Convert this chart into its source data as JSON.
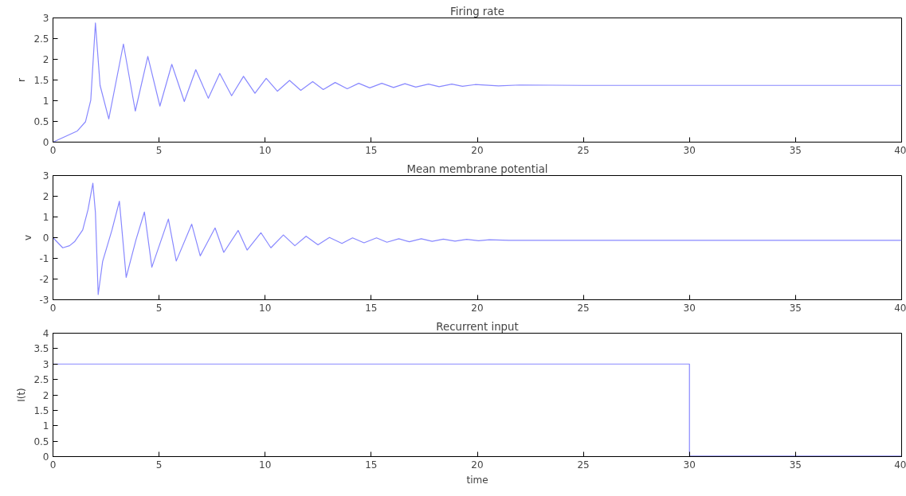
{
  "chart_data": [
    {
      "type": "line",
      "title": "Firing rate",
      "ylabel": "r",
      "xlim": [
        0,
        40
      ],
      "ylim": [
        0,
        3
      ],
      "xticks": [
        0,
        5,
        10,
        15,
        20,
        25,
        30,
        35,
        40
      ],
      "yticks": [
        0,
        0.5,
        1,
        1.5,
        2,
        2.5,
        3
      ],
      "series": [
        {
          "color": "#8888ff",
          "x": [
            0,
            1.15,
            1.53,
            1.78,
            2.0,
            2.22,
            2.63,
            3.32,
            3.88,
            4.47,
            5.04,
            5.6,
            6.19,
            6.73,
            7.32,
            7.86,
            8.42,
            8.98,
            9.52,
            10.05,
            10.58,
            11.15,
            11.68,
            12.24,
            12.74,
            13.3,
            13.87,
            14.41,
            14.93,
            15.5,
            16.05,
            16.59,
            17.1,
            17.7,
            18.2,
            18.8,
            19.3,
            19.9,
            21,
            22,
            25,
            30,
            40
          ],
          "values": [
            0,
            0.27,
            0.49,
            1.01,
            2.88,
            1.37,
            0.56,
            2.37,
            0.75,
            2.07,
            0.87,
            1.88,
            0.98,
            1.75,
            1.06,
            1.66,
            1.12,
            1.59,
            1.18,
            1.54,
            1.23,
            1.49,
            1.25,
            1.46,
            1.27,
            1.44,
            1.29,
            1.42,
            1.31,
            1.42,
            1.32,
            1.41,
            1.33,
            1.4,
            1.34,
            1.4,
            1.35,
            1.39,
            1.36,
            1.38,
            1.37,
            1.37,
            1.37
          ]
        }
      ]
    },
    {
      "type": "line",
      "title": "Mean membrane potential",
      "ylabel": "v",
      "xlim": [
        0,
        40
      ],
      "ylim": [
        -3,
        3
      ],
      "xticks": [
        0,
        5,
        10,
        15,
        20,
        25,
        30,
        35,
        40
      ],
      "yticks": [
        -3,
        -2,
        -1,
        0,
        1,
        2,
        3
      ],
      "series": [
        {
          "color": "#8888ff",
          "x": [
            0,
            0.46,
            0.78,
            1.03,
            1.4,
            1.65,
            1.88,
            2.0,
            2.13,
            2.34,
            2.78,
            3.13,
            3.45,
            3.91,
            4.31,
            4.66,
            5.44,
            5.81,
            6.54,
            6.94,
            7.64,
            8.05,
            8.73,
            9.15,
            9.8,
            10.27,
            10.86,
            11.4,
            11.93,
            12.49,
            13.03,
            13.62,
            14.12,
            14.66,
            15.25,
            15.74,
            16.3,
            16.8,
            17.36,
            17.87,
            18.4,
            18.95,
            19.5,
            20.06,
            20.57,
            21.5,
            25,
            30,
            40
          ],
          "values": [
            0,
            -0.49,
            -0.39,
            -0.18,
            0.37,
            1.35,
            2.63,
            1.21,
            -2.75,
            -1.15,
            0.37,
            1.76,
            -1.92,
            -0.11,
            1.24,
            -1.43,
            0.9,
            -1.13,
            0.65,
            -0.88,
            0.47,
            -0.71,
            0.35,
            -0.6,
            0.24,
            -0.49,
            0.13,
            -0.39,
            0.07,
            -0.35,
            0.01,
            -0.28,
            -0.01,
            -0.25,
            -0.01,
            -0.22,
            -0.05,
            -0.2,
            -0.05,
            -0.18,
            -0.07,
            -0.17,
            -0.08,
            -0.15,
            -0.1,
            -0.13,
            -0.13,
            -0.13,
            -0.13
          ]
        }
      ]
    },
    {
      "type": "line",
      "title": "Recurrent input",
      "ylabel": "I(t)",
      "xlabel": "time",
      "xlim": [
        0,
        40
      ],
      "ylim": [
        0,
        4
      ],
      "xticks": [
        0,
        5,
        10,
        15,
        20,
        25,
        30,
        35,
        40
      ],
      "yticks": [
        0,
        0.5,
        1,
        1.5,
        2,
        2.5,
        3,
        3.5,
        4
      ],
      "series": [
        {
          "color": "#8888ff",
          "x": [
            0,
            30,
            30,
            40
          ],
          "values": [
            3,
            3,
            0.02,
            0.02
          ]
        }
      ]
    }
  ]
}
